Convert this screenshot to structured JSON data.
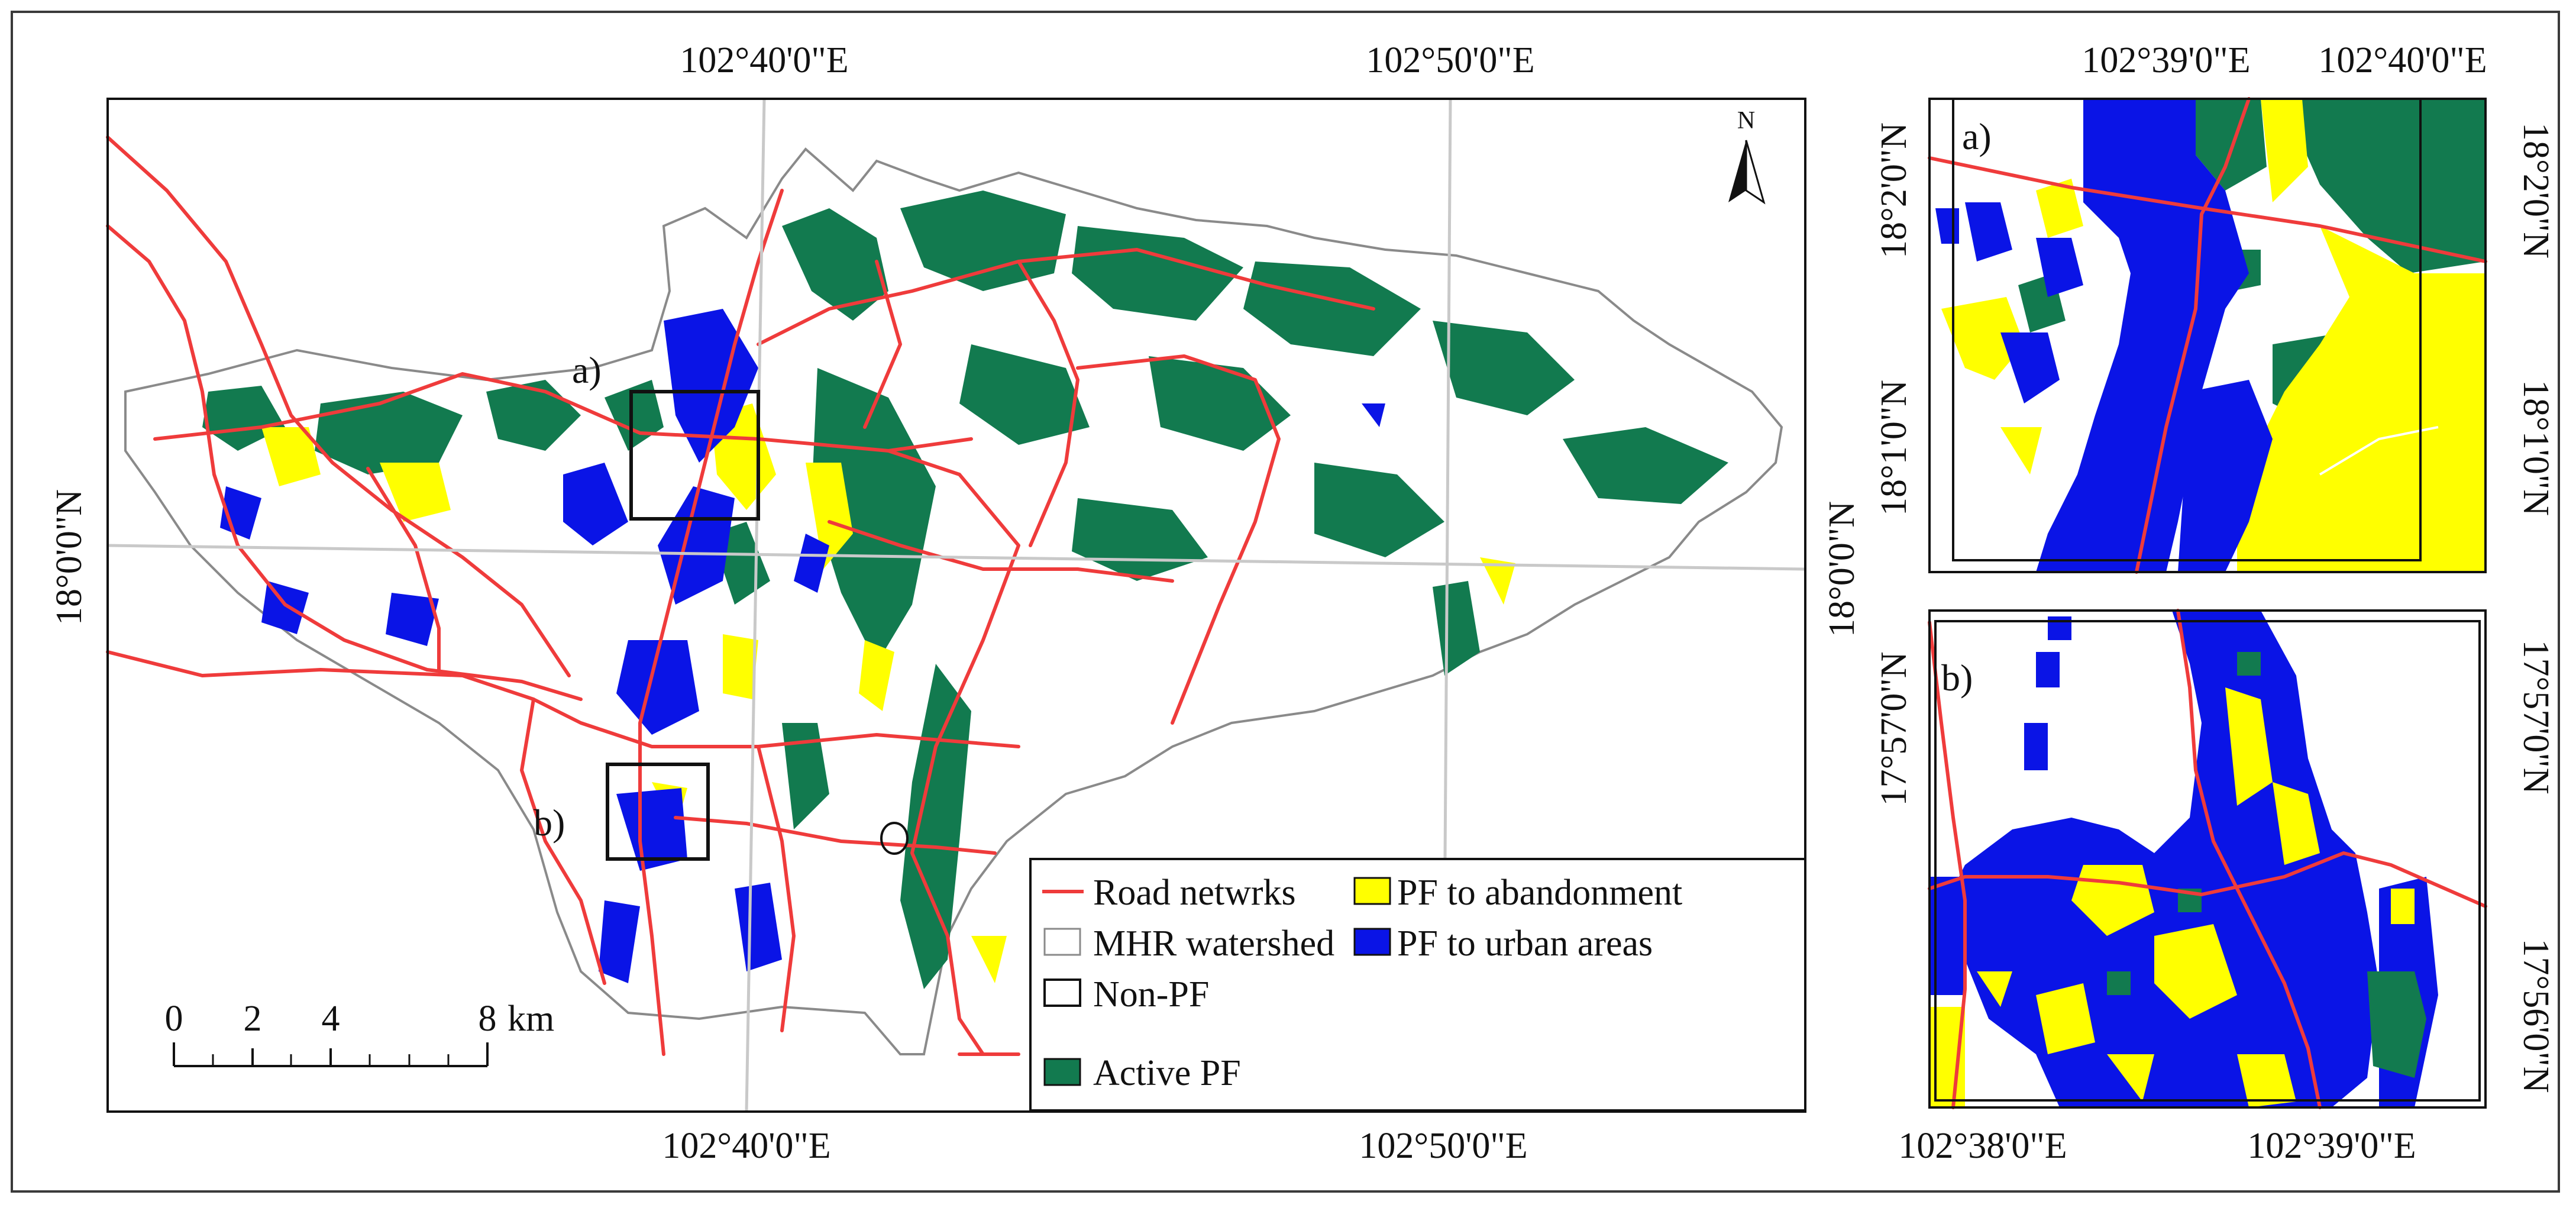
{
  "main_map": {
    "lon_labels_top": [
      "102°40'0\"E",
      "102°50'0\"E"
    ],
    "lon_labels_bottom": [
      "102°40'0\"E",
      "102°50'0\"E"
    ],
    "lat_label_left": "18°0'0\"N",
    "lat_label_right": "18°0'0\"N",
    "inset_labels": [
      "a)",
      "b)"
    ],
    "north_arrow_label": "N",
    "scale_bar": {
      "ticks": [
        "0",
        "2",
        "4",
        "8"
      ],
      "unit": "km"
    }
  },
  "legend": {
    "items": [
      {
        "label": "Road netwrks",
        "symbol": "line",
        "color": "#ef3b3b"
      },
      {
        "label": "PF to abandonment",
        "symbol": "box",
        "color": "#ffff00"
      },
      {
        "label": "MHR watershed",
        "symbol": "box",
        "color": "#ffffff"
      },
      {
        "label": "PF to urban areas",
        "symbol": "box",
        "color": "#0a14e6"
      },
      {
        "label": "Non-PF",
        "symbol": "box",
        "color": "#ffffff"
      },
      {
        "label": "Active PF",
        "symbol": "box",
        "color": "#127a4f"
      }
    ]
  },
  "inset_a": {
    "label": "a)",
    "lon_labels_top": [
      "102°39'0\"E",
      "102°40'0\"E"
    ],
    "lat_labels_left": [
      "18°2'0\"N",
      "18°1'0\"N"
    ],
    "lat_labels_right": [
      "18°2'0\"N",
      "18°1'0\"N"
    ]
  },
  "inset_b": {
    "label": "b)",
    "lon_labels_bottom": [
      "102°38'0\"E",
      "102°39'0\"E"
    ],
    "lat_labels_left": [
      "17°57'0\"N"
    ],
    "lat_labels_right": [
      "17°57'0\"N",
      "17°56'0\"N"
    ]
  },
  "colors": {
    "active_pf": "#127a4f",
    "pf_abandonment": "#ffff00",
    "pf_urban": "#0a14e6",
    "road": "#ef3b3b",
    "watershed_outline": "#8a8a8a"
  }
}
